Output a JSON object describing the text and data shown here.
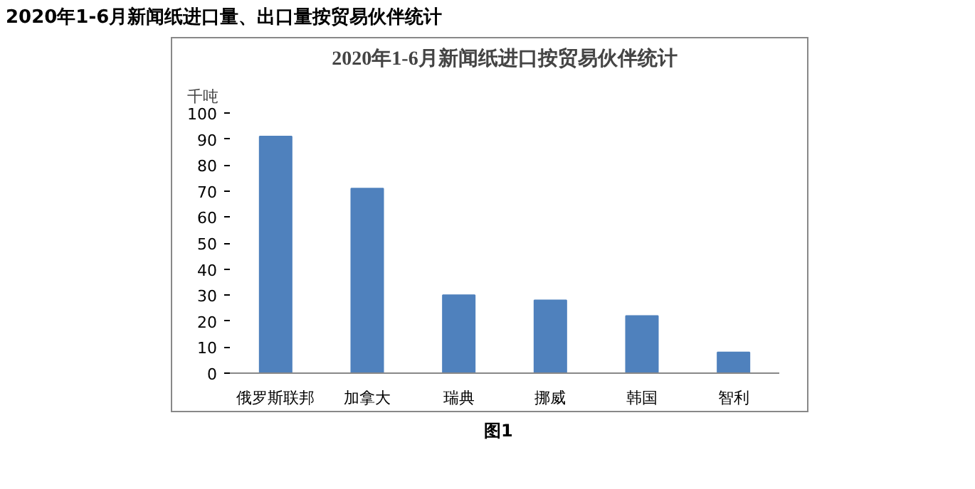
{
  "chart_data": {
    "type": "bar",
    "title": "2020年1-6月新闻纸进口按贸易伙伴统计",
    "subtitle": "2020年1-6月新闻纸进口量、出口量按贸易伙伴统计",
    "ylabel": "千吨",
    "annotations": [
      "图1"
    ],
    "categories": [
      "俄罗斯联邦",
      "加拿大",
      "瑞典",
      "挪威",
      "韩国",
      "智利"
    ],
    "values": [
      91,
      71,
      30,
      28,
      22,
      8
    ],
    "color": "#4f81bd",
    "ylim": [
      0,
      100
    ],
    "yticks": [
      0,
      10,
      20,
      30,
      40,
      50,
      60,
      70,
      80,
      90,
      100
    ],
    "grid": false
  }
}
